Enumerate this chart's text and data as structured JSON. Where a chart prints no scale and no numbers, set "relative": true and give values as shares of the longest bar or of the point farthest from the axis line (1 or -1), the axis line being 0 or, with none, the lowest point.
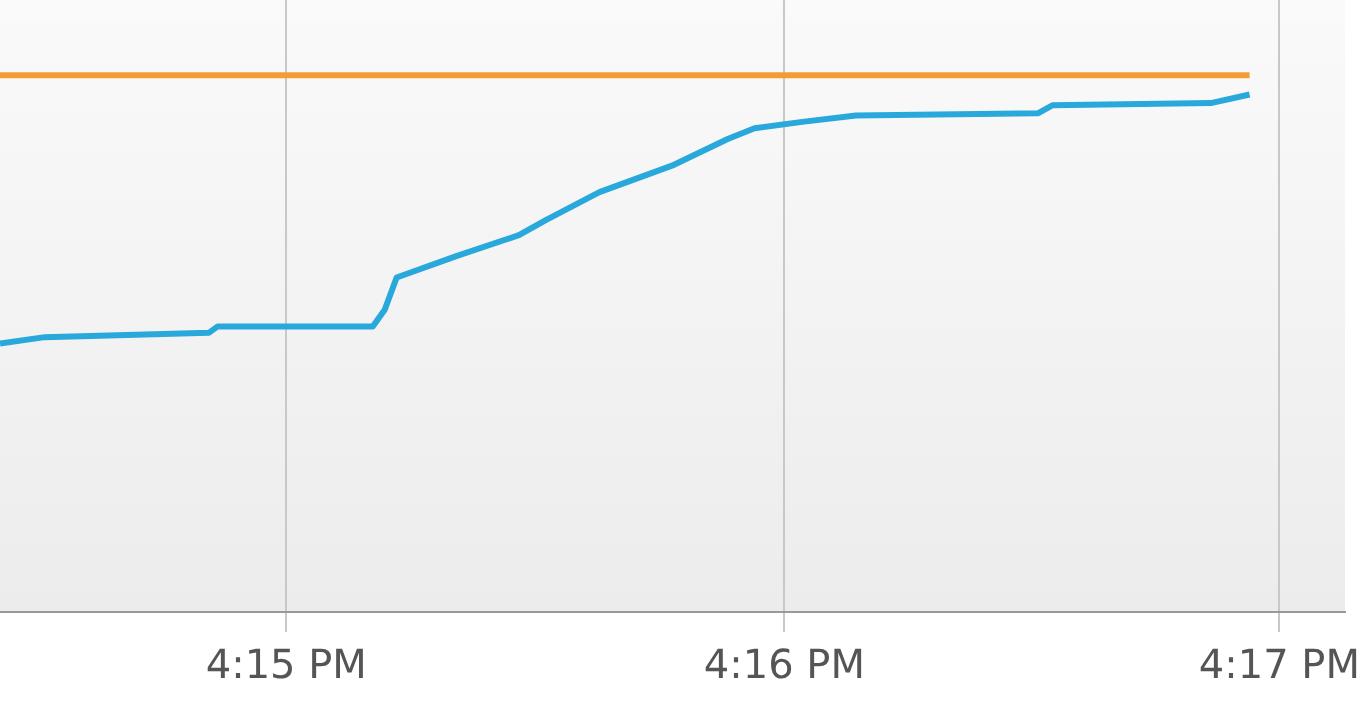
{
  "chart_data": {
    "type": "line",
    "relative": true,
    "grid": "x",
    "legend": false,
    "marker": "none",
    "line_style": "solid",
    "xlim": [
      16.2404,
      16.2855
    ],
    "xticks": [
      {
        "value": 16.25,
        "label": "4:15 PM"
      },
      {
        "value": 16.2667,
        "label": "4:16 PM"
      },
      {
        "value": 16.2833,
        "label": "4:17 PM"
      }
    ],
    "series": [
      {
        "color": "#f39c34",
        "x": [
          16.2404,
          16.2823
        ],
        "values": [
          1,
          1
        ]
      },
      {
        "color": "#29a8dc",
        "x": [
          16.2404,
          16.2419,
          16.2474,
          16.2477,
          16.2529,
          16.2533,
          16.2537,
          16.2557,
          16.2578,
          16.2587,
          16.2605,
          16.263,
          16.2648,
          16.2657,
          16.2673,
          16.2691,
          16.2752,
          16.2757,
          16.281,
          16.2823
        ],
        "values": [
          0.5,
          0.512,
          0.52,
          0.532,
          0.532,
          0.563,
          0.623,
          0.663,
          0.702,
          0.73,
          0.782,
          0.833,
          0.881,
          0.901,
          0.913,
          0.925,
          0.929,
          0.944,
          0.948,
          0.964
        ]
      }
    ]
  }
}
